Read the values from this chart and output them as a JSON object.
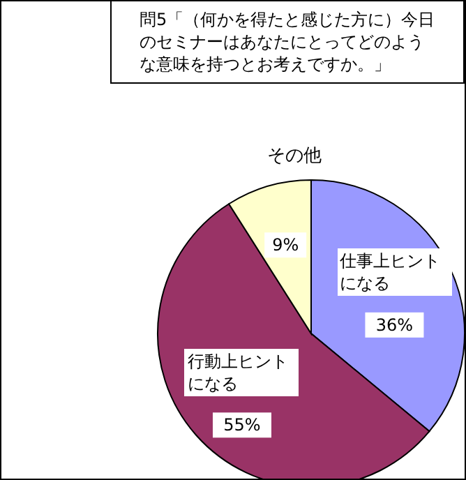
{
  "chart_data": {
    "type": "pie",
    "title": "問5「（何かを得たと感じた方に）今日のセミナーはあなたにとってどのような意味を持つとお考えですか。」",
    "categories": [
      "仕事上ヒントになる",
      "行動上ヒントになる",
      "その他"
    ],
    "values": [
      36,
      55,
      9
    ],
    "value_labels": [
      "36%",
      "55%",
      "9%"
    ],
    "colors": [
      "#9999ff",
      "#993366",
      "#ffffcc"
    ],
    "legend": false
  }
}
